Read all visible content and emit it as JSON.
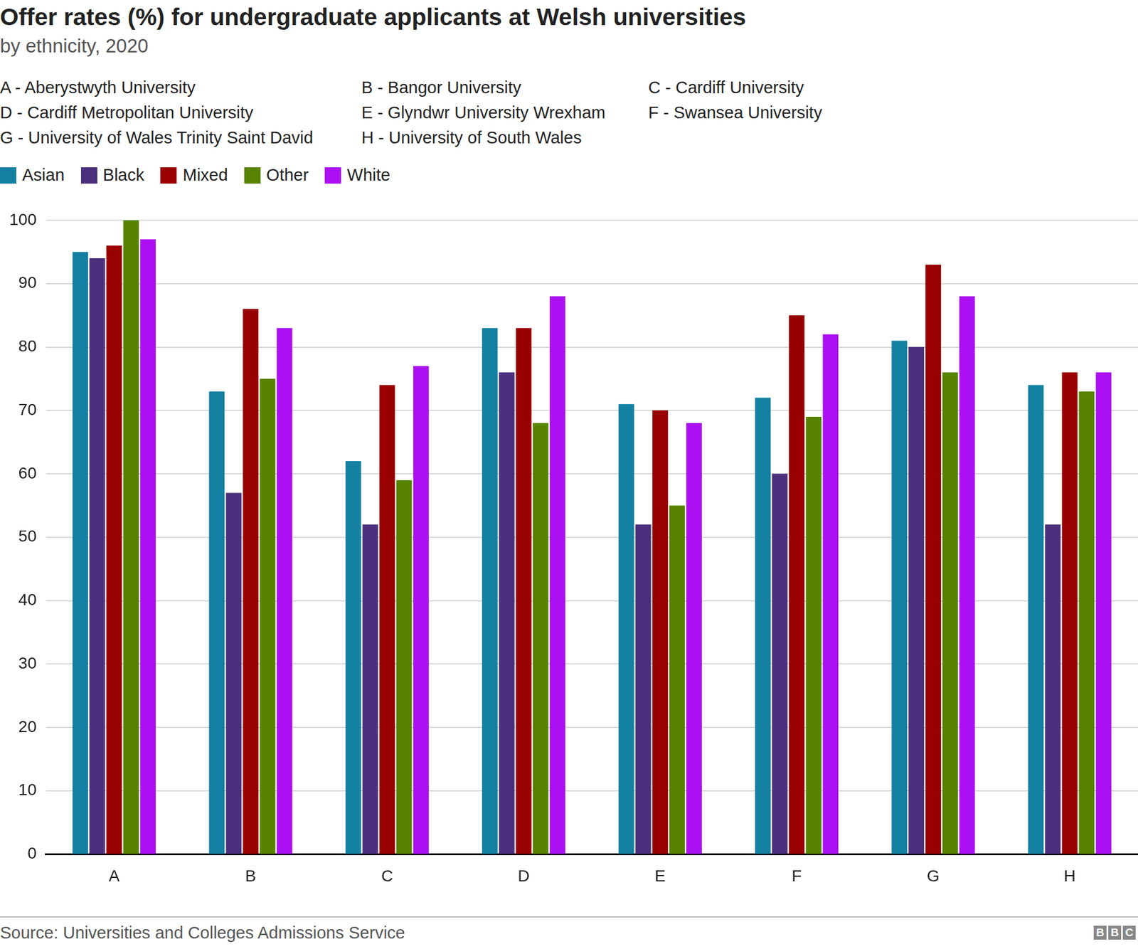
{
  "chart_data": {
    "type": "bar",
    "title": "Offer rates (%) for undergraduate applicants at Welsh universities",
    "subtitle": "by ethnicity, 2020",
    "annotations": [
      "A - Aberystwyth University",
      "B - Bangor University",
      "C - Cardiff University",
      "D - Cardiff Metropolitan University",
      "E - Glyndwr University Wrexham",
      "F - Swansea University",
      "G - University of Wales Trinity Saint David",
      "H - University of South Wales"
    ],
    "source": "Source: Universities and Colleges Admissions Service",
    "credit": "BBC",
    "categories": [
      "A",
      "B",
      "C",
      "D",
      "E",
      "F",
      "G",
      "H"
    ],
    "series": [
      {
        "name": "Asian",
        "color": "#1380a1",
        "values": [
          95,
          73,
          62,
          83,
          71,
          72,
          81,
          74
        ]
      },
      {
        "name": "Black",
        "color": "#4b2f7c",
        "values": [
          94,
          57,
          52,
          76,
          52,
          60,
          80,
          52
        ]
      },
      {
        "name": "Mixed",
        "color": "#990000",
        "values": [
          96,
          86,
          74,
          83,
          70,
          85,
          93,
          76
        ]
      },
      {
        "name": "Other",
        "color": "#588300",
        "values": [
          100,
          75,
          59,
          68,
          55,
          69,
          76,
          73
        ]
      },
      {
        "name": "White",
        "color": "#aa10f2",
        "values": [
          97,
          83,
          77,
          88,
          68,
          82,
          88,
          76
        ]
      }
    ],
    "ylim": [
      0,
      100
    ],
    "yticks": [
      0,
      10,
      20,
      30,
      40,
      50,
      60,
      70,
      80,
      90,
      100
    ],
    "grid": true,
    "legend": "top-left"
  }
}
